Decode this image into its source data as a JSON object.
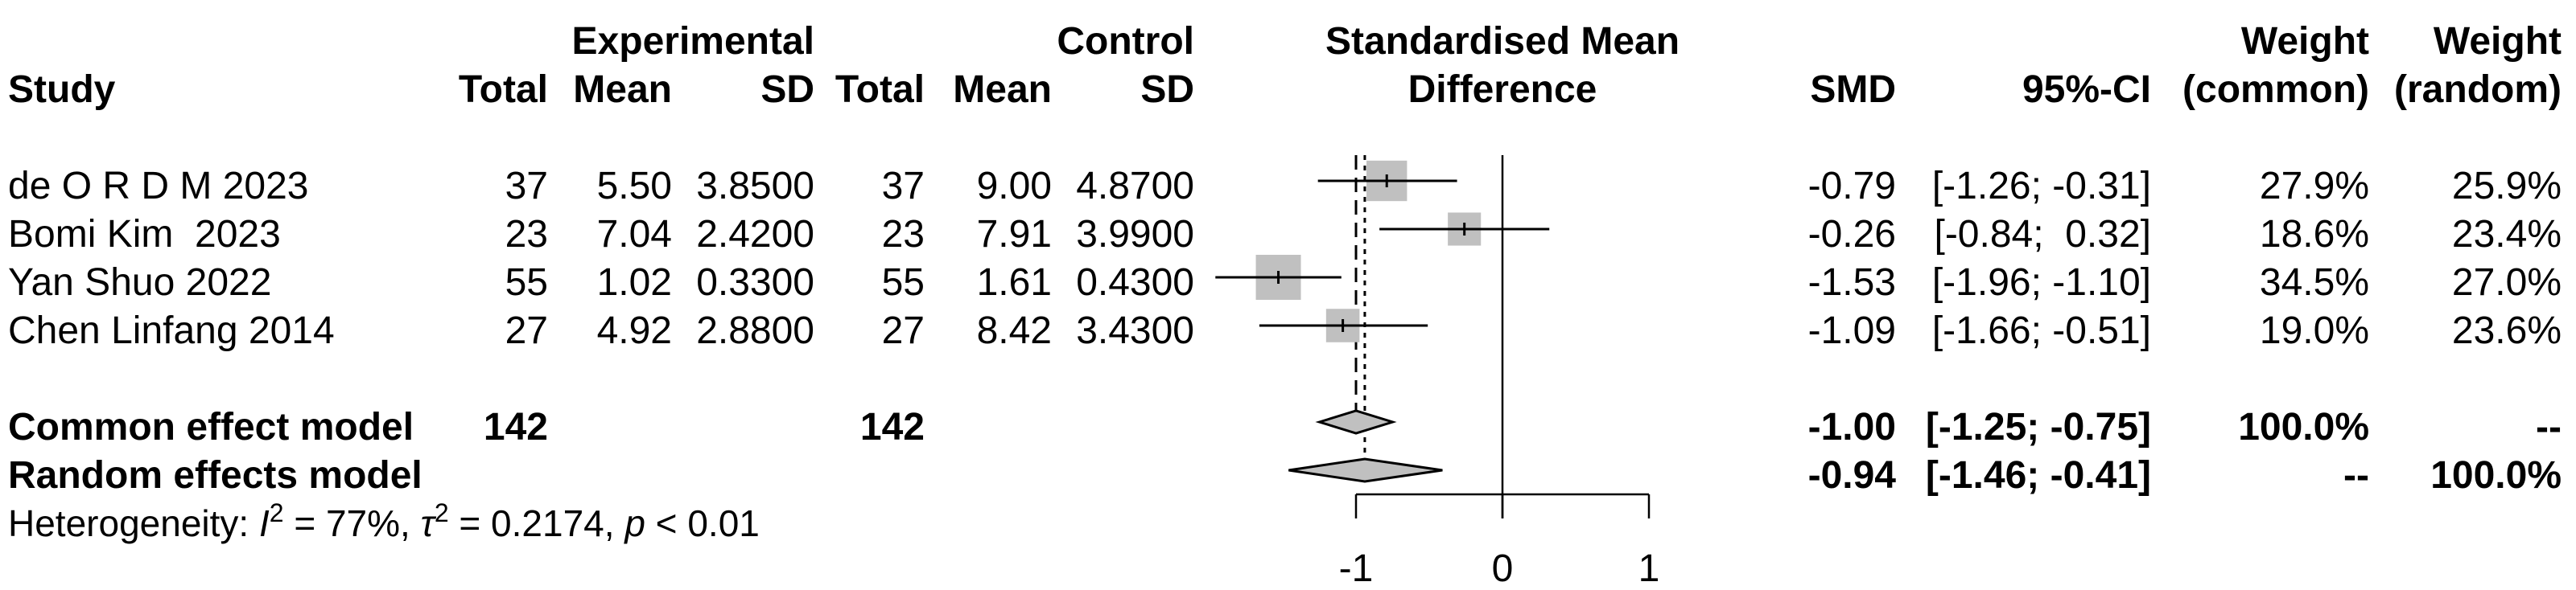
{
  "header": {
    "study": "Study",
    "experimental": "Experimental",
    "control": "Control",
    "smd_title_1": "Standardised Mean",
    "smd_title_2": "Difference",
    "total": "Total",
    "mean": "Mean",
    "sd": "SD",
    "smd": "SMD",
    "ci": "95%-CI",
    "weight": "Weight",
    "weight_common": "(common)",
    "weight_random": "(random)"
  },
  "studies": [
    {
      "name": "de O R D M 2023",
      "e_total": "37",
      "e_mean": "5.50",
      "e_sd": "3.8500",
      "c_total": "37",
      "c_mean": "9.00",
      "c_sd": "4.8700",
      "smd": "-0.79",
      "ci": "[-1.26; -0.31]",
      "w_common": "27.9%",
      "w_random": "25.9%"
    },
    {
      "name": "Bomi Kim  2023",
      "e_total": "23",
      "e_mean": "7.04",
      "e_sd": "2.4200",
      "c_total": "23",
      "c_mean": "7.91",
      "c_sd": "3.9900",
      "smd": "-0.26",
      "ci": "[-0.84;  0.32]",
      "w_common": "18.6%",
      "w_random": "23.4%"
    },
    {
      "name": "Yan Shuo 2022",
      "e_total": "55",
      "e_mean": "1.02",
      "e_sd": "0.3300",
      "c_total": "55",
      "c_mean": "1.61",
      "c_sd": "0.4300",
      "smd": "-1.53",
      "ci": "[-1.96; -1.10]",
      "w_common": "34.5%",
      "w_random": "27.0%"
    },
    {
      "name": "Chen Linfang 2014",
      "e_total": "27",
      "e_mean": "4.92",
      "e_sd": "2.8800",
      "c_total": "27",
      "c_mean": "8.42",
      "c_sd": "3.4300",
      "smd": "-1.09",
      "ci": "[-1.66; -0.51]",
      "w_common": "19.0%",
      "w_random": "23.6%"
    }
  ],
  "common": {
    "label": "Common effect model",
    "e_total": "142",
    "c_total": "142",
    "smd": "-1.00",
    "ci": "[-1.25; -0.75]",
    "w_common": "100.0%",
    "w_random": "--"
  },
  "random": {
    "label": "Random effects model",
    "smd": "-0.94",
    "ci": "[-1.46; -0.41]",
    "w_common": "--",
    "w_random": "100.0%"
  },
  "heterogeneity": {
    "prefix": "Heterogeneity: ",
    "i2_symbol": "I",
    "i2_value": " = 77%, ",
    "tau_symbol": "τ",
    "tau_value": " = 0.2174, ",
    "p_symbol": "p",
    "p_value": " < 0.01"
  },
  "chart_data": {
    "type": "forest",
    "title": "Standardised Mean Difference",
    "xlabel": "",
    "x_ticks": [
      -1,
      0,
      1
    ],
    "x_tick_labels": [
      "-1",
      "0",
      "1"
    ],
    "xlim": [
      -1,
      1
    ],
    "null_line": 0,
    "box_color": "#c0c0c0",
    "diamond_color": "#c0c0c0",
    "studies": [
      {
        "name": "de O R D M 2023",
        "smd": -0.79,
        "lower": -1.26,
        "upper": -0.31,
        "weight_common": 27.9
      },
      {
        "name": "Bomi Kim  2023",
        "smd": -0.26,
        "lower": -0.84,
        "upper": 0.32,
        "weight_common": 18.6
      },
      {
        "name": "Yan Shuo 2022",
        "smd": -1.53,
        "lower": -1.96,
        "upper": -1.1,
        "weight_common": 34.5
      },
      {
        "name": "Chen Linfang 2014",
        "smd": -1.09,
        "lower": -1.66,
        "upper": -0.51,
        "weight_common": 19.0
      }
    ],
    "common": {
      "smd": -1.0,
      "lower": -1.25,
      "upper": -0.75
    },
    "random": {
      "smd": -0.94,
      "lower": -1.46,
      "upper": -0.41
    }
  }
}
